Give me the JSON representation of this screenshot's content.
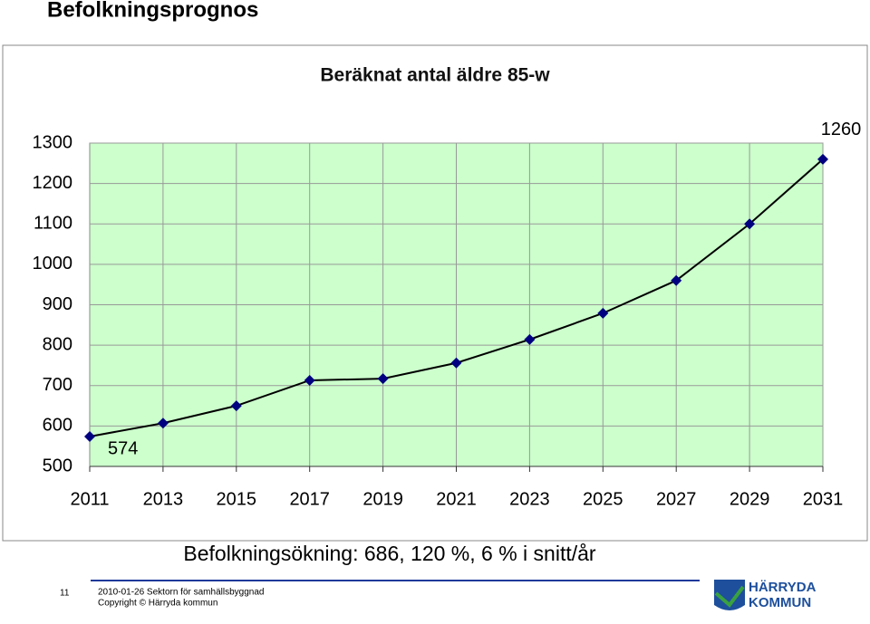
{
  "slide_title": "Befolkningsprognos",
  "chart_data": {
    "type": "line",
    "title": "Beräknat antal äldre 85-w",
    "categories": [
      "2011",
      "2013",
      "2015",
      "2017",
      "2019",
      "2021",
      "2023",
      "2025",
      "2027",
      "2029",
      "2031"
    ],
    "values": [
      574,
      607,
      650,
      713,
      717,
      756,
      814,
      879,
      960,
      1100,
      1260
    ],
    "labeled_points": [
      0,
      10
    ],
    "color": "#000080",
    "background": "#ccffcc",
    "ylim": [
      500,
      1300
    ],
    "yticks": [
      500,
      600,
      700,
      800,
      900,
      1000,
      1100,
      1200,
      1300
    ],
    "grid": true
  },
  "subtitle": "Befolkningsökning: 686, 120 %, 6 % i snitt/år",
  "footer": {
    "page": "11",
    "line1": "2010-01-26  Sektorn för samhällsbyggnad",
    "line2": "Copyright © Härryda kommun",
    "logo_line1": "HÄRRYDA",
    "logo_line2": "KOMMUN"
  }
}
